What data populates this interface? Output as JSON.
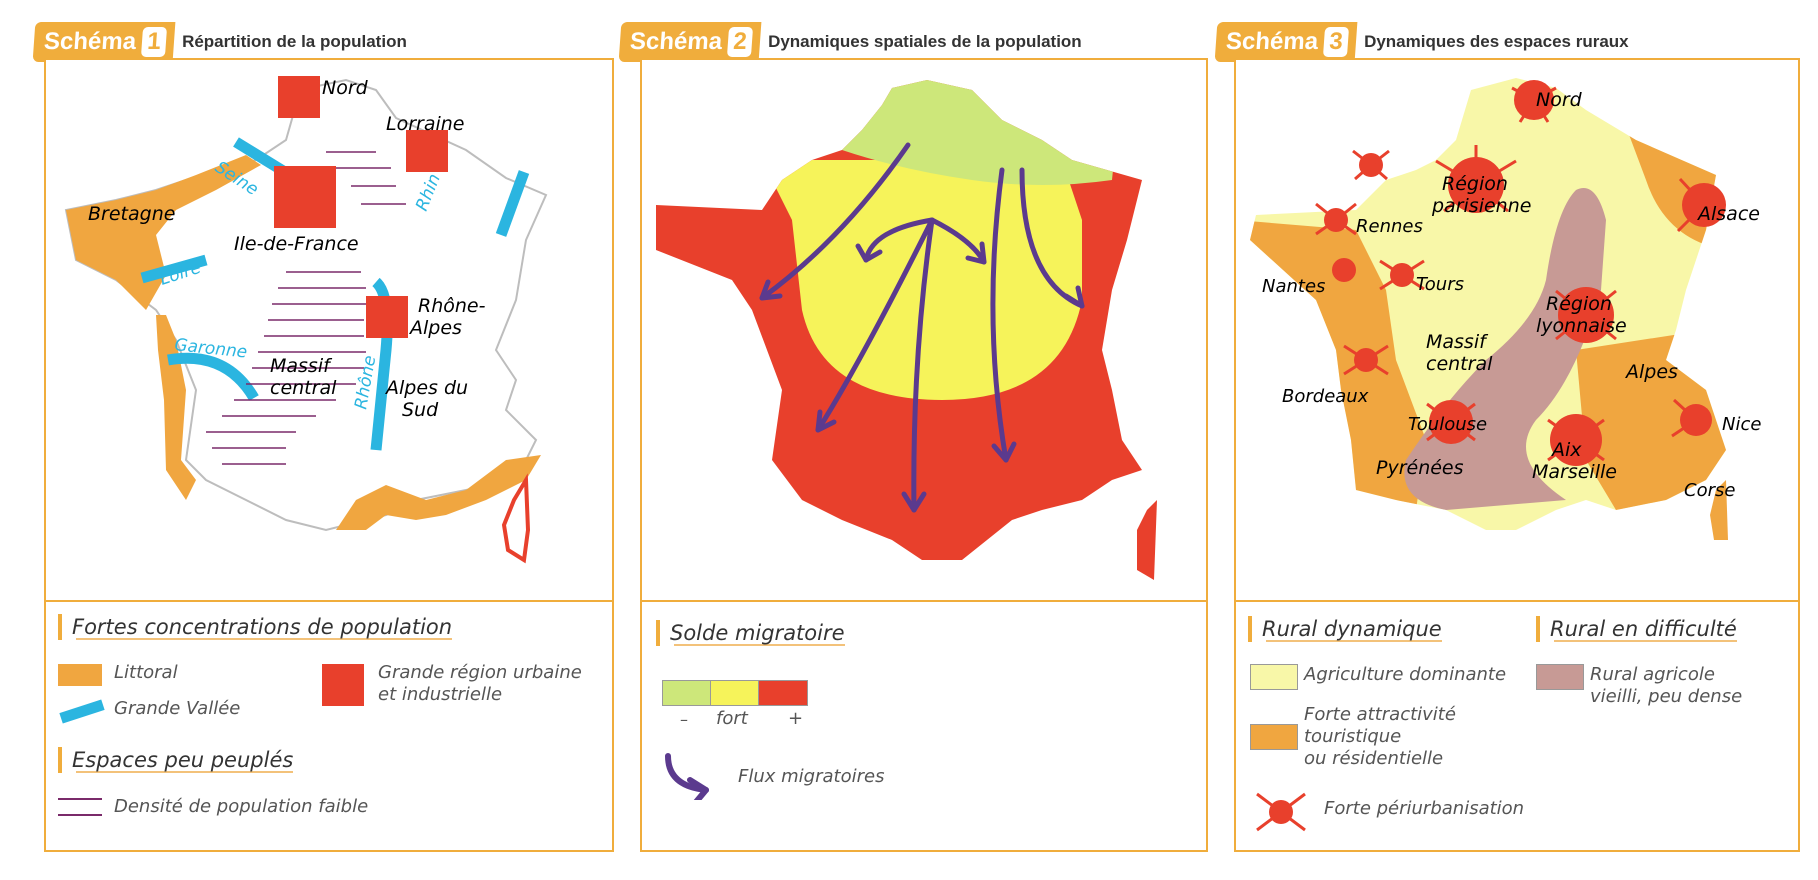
{
  "colors": {
    "orange": "#f0a640",
    "red": "#e8402c",
    "blue": "#2bb5e0",
    "yellow": "#f6f35a",
    "lightgreen": "#cde77a",
    "palyellow": "#f8f7a8",
    "mauve": "#c79a95",
    "purple": "#5b3a8e",
    "frame": "#f0ad3c"
  },
  "schema1": {
    "badge": "Schéma",
    "num": "1",
    "title": "Répartition de la population",
    "labels": {
      "nord": "Nord",
      "lorraine": "Lorraine",
      "seine": "Seine",
      "rhin": "Rhin",
      "bretagne": "Bretagne",
      "idf": "Ile-de-France",
      "loire": "Loire",
      "rhone_alpes_1": "Rhône-",
      "rhone_alpes_2": "Alpes",
      "garonne": "Garonne",
      "massif_1": "Massif",
      "massif_2": "central",
      "rhone": "Rhône",
      "alpes_sud_1": "Alpes du",
      "alpes_sud_2": "Sud"
    },
    "legend": {
      "heading1": "Fortes concentrations de population",
      "littoral": "Littoral",
      "vallee": "Grande Vallée",
      "urbaine_1": "Grande région urbaine",
      "urbaine_2": "et industrielle",
      "heading2": "Espaces peu peuplés",
      "densite": "Densité de population faible"
    }
  },
  "schema2": {
    "badge": "Schéma",
    "num": "2",
    "title": "Dynamiques spatiales de la population",
    "legend": {
      "heading": "Solde migratoire",
      "minus": "–",
      "fort": "fort",
      "plus": "+",
      "flux": "Flux migratoires"
    }
  },
  "schema3": {
    "badge": "Schéma",
    "num": "3",
    "title": "Dynamiques des espaces ruraux",
    "labels": {
      "nord": "Nord",
      "region_paris_1": "Région",
      "region_paris_2": "parisienne",
      "alsace": "Alsace",
      "rennes": "Rennes",
      "nantes": "Nantes",
      "tours": "Tours",
      "region_lyon_1": "Région",
      "region_lyon_2": "lyonnaise",
      "massif_1": "Massif",
      "massif_2": "central",
      "alpes": "Alpes",
      "bordeaux": "Bordeaux",
      "toulouse": "Toulouse",
      "nice": "Nice",
      "aix_1": "Aix",
      "aix_2": "Marseille",
      "pyrenees": "Pyrénées",
      "corse": "Corse"
    },
    "legend": {
      "heading1": "Rural dynamique",
      "heading2": "Rural en difficulté",
      "agri": "Agriculture dominante",
      "touri_1": "Forte attractivité",
      "touri_2": "touristique",
      "touri_3": "ou résidentielle",
      "rural_1": "Rural agricole",
      "rural_2": "vieilli, peu dense",
      "periurb": "Forte périurbanisation"
    }
  }
}
